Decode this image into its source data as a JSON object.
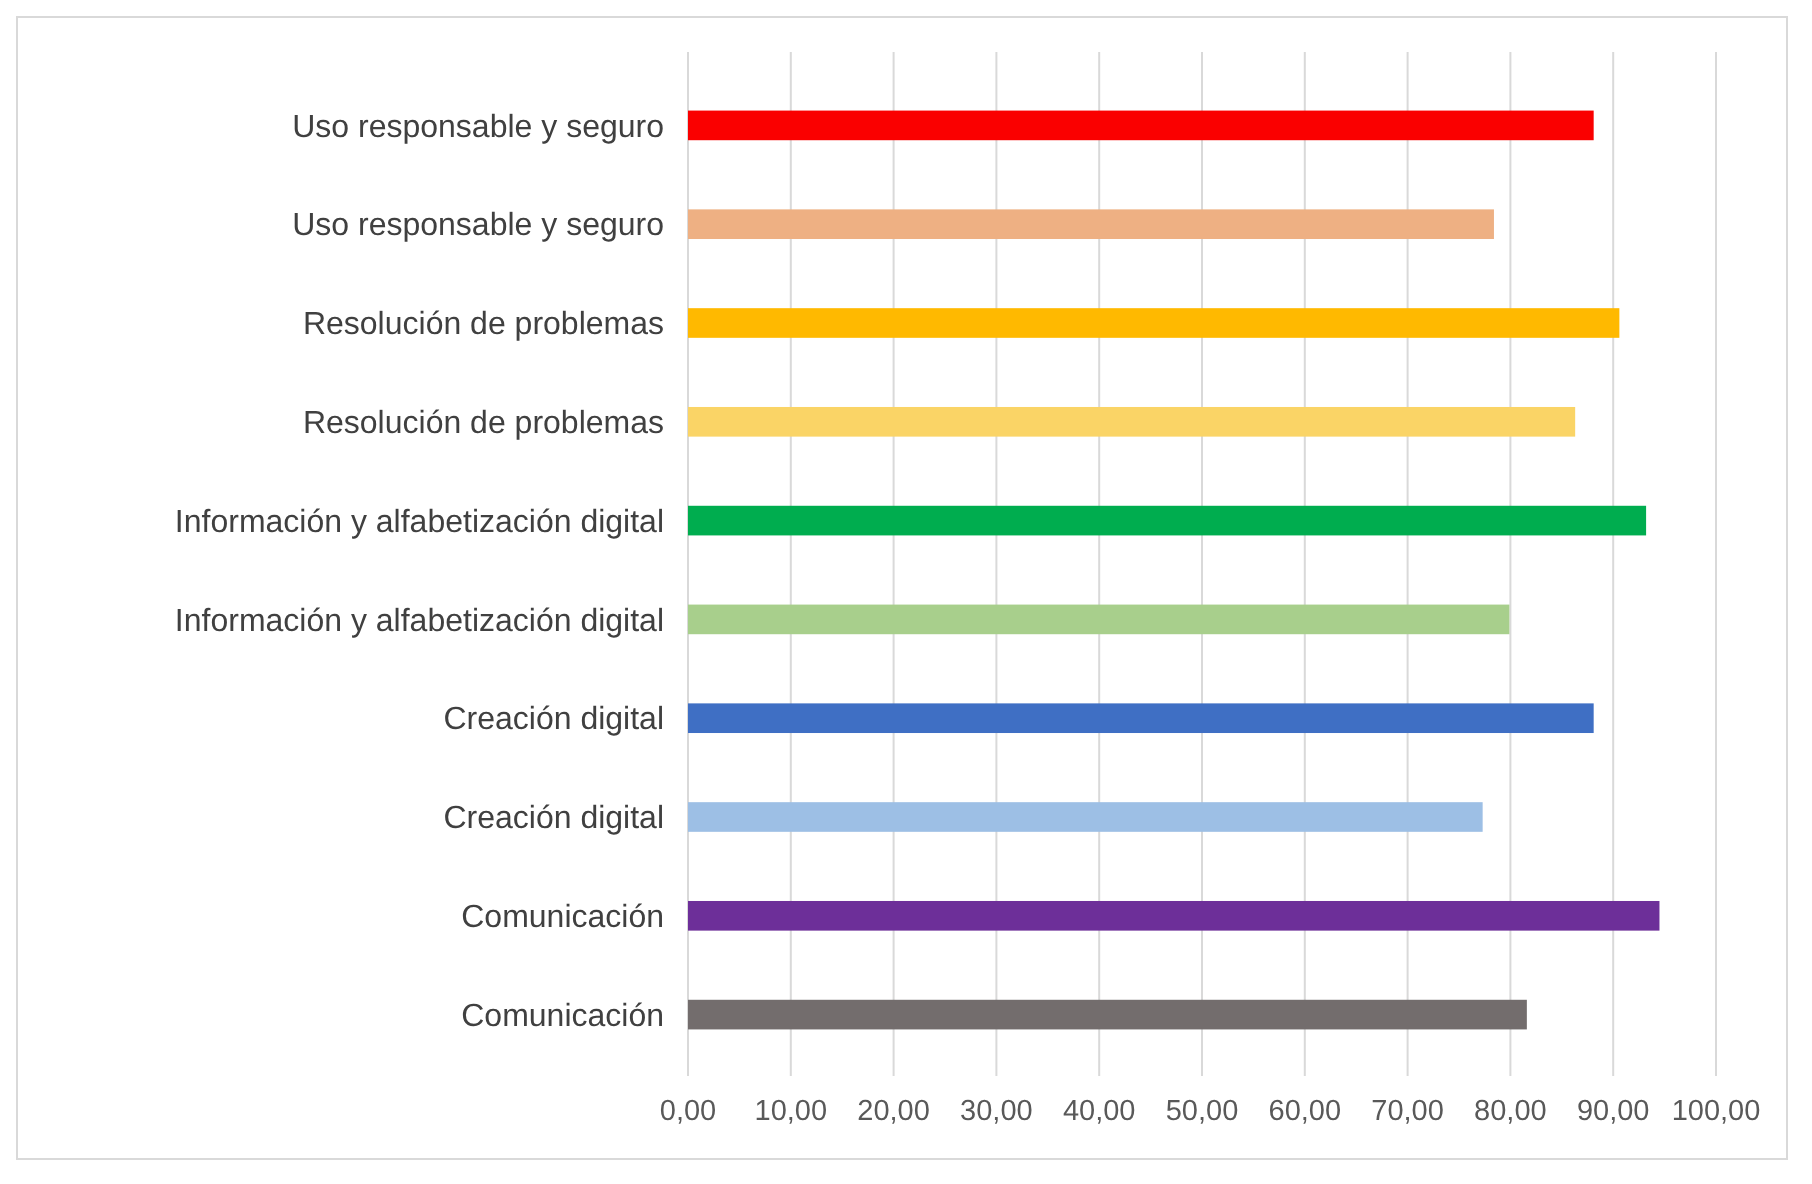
{
  "chart_data": {
    "type": "bar",
    "orientation": "horizontal",
    "categories": [
      "Uso responsable y seguro",
      "Uso responsable y seguro",
      "Resolución de problemas",
      "Resolución de problemas",
      "Información y alfabetización digital",
      "Información y alfabetización digital",
      "Creación digital",
      "Creación digital",
      "Comunicación",
      "Comunicación"
    ],
    "values": [
      88.1,
      78.4,
      90.6,
      86.3,
      93.2,
      79.9,
      88.1,
      77.3,
      94.5,
      81.6
    ],
    "colors": [
      "#fa0000",
      "#eeb083",
      "#ffb900",
      "#fad466",
      "#00ad4f",
      "#a8cf8c",
      "#3f6fc4",
      "#9dbfe5",
      "#6d2f99",
      "#736d6d"
    ],
    "xlim": [
      0,
      100
    ],
    "xticks": [
      {
        "value": 0,
        "label": "0,00"
      },
      {
        "value": 10,
        "label": "10,00"
      },
      {
        "value": 20,
        "label": "20,00"
      },
      {
        "value": 30,
        "label": "30,00"
      },
      {
        "value": 40,
        "label": "40,00"
      },
      {
        "value": 50,
        "label": "50,00"
      },
      {
        "value": 60,
        "label": "60,00"
      },
      {
        "value": 70,
        "label": "70,00"
      },
      {
        "value": 80,
        "label": "80,00"
      },
      {
        "value": 90,
        "label": "90,00"
      },
      {
        "value": 100,
        "label": "100,00"
      }
    ],
    "grid": "x"
  }
}
